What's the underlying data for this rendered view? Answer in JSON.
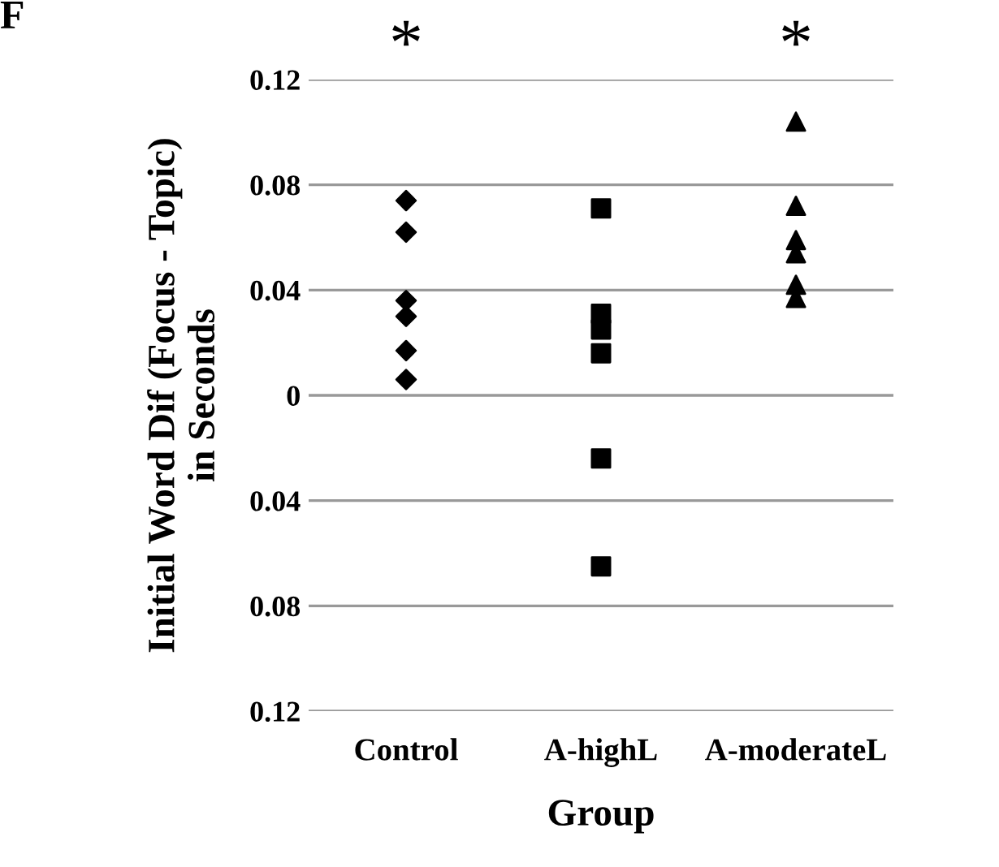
{
  "chart_data": {
    "type": "scatter",
    "xlabel": "Group",
    "ylabel": "Initial Word Dif (Focus - Topic)\nin Seconds",
    "categories": [
      "Control",
      "A-highL",
      "A-moderateL"
    ],
    "series": [
      {
        "color": "#000000",
        "marker": "diamond",
        "x": [
          "Control",
          "Control",
          "Control",
          "Control",
          "Control",
          "Control"
        ],
        "values": [
          0.074,
          0.062,
          0.036,
          0.03,
          0.017,
          0.006
        ]
      },
      {
        "color": "#000000",
        "marker": "square",
        "x": [
          "A-highL",
          "A-highL",
          "A-highL",
          "A-highL",
          "A-highL",
          "A-highL"
        ],
        "values": [
          0.071,
          0.031,
          0.025,
          0.016,
          -0.024,
          -0.065
        ]
      },
      {
        "color": "#000000",
        "marker": "triangle",
        "x": [
          "A-moderateL",
          "A-moderateL",
          "A-moderateL",
          "A-moderateL",
          "A-moderateL",
          "A-moderateL"
        ],
        "values": [
          0.104,
          0.072,
          0.059,
          0.054,
          0.042,
          0.037
        ]
      }
    ],
    "ylim": [
      -0.12,
      0.12
    ],
    "yticks": [
      {
        "value": -0.12,
        "label": "0.12"
      },
      {
        "value": -0.08,
        "label": "0.08"
      },
      {
        "value": -0.04,
        "label": "0.04"
      },
      0,
      0.04,
      0.08,
      0.12
    ],
    "grid": "y",
    "annotations": [
      "F",
      "*",
      "*"
    ]
  }
}
